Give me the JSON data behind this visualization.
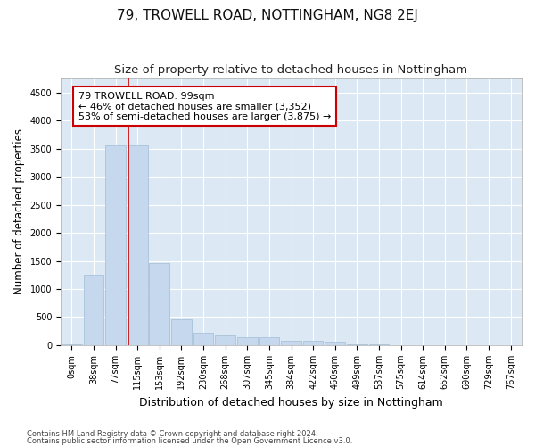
{
  "title": "79, TROWELL ROAD, NOTTINGHAM, NG8 2EJ",
  "subtitle": "Size of property relative to detached houses in Nottingham",
  "xlabel": "Distribution of detached houses by size in Nottingham",
  "ylabel": "Number of detached properties",
  "footnote1": "Contains HM Land Registry data © Crown copyright and database right 2024.",
  "footnote2": "Contains public sector information licensed under the Open Government Licence v3.0.",
  "bar_color": "#c5d8ed",
  "bar_edge_color": "#a0bdd6",
  "fig_bg_color": "#ffffff",
  "plot_bg_color": "#dce9f5",
  "ylim": [
    0,
    4750
  ],
  "yticks": [
    0,
    500,
    1000,
    1500,
    2000,
    2500,
    3000,
    3500,
    4000,
    4500
  ],
  "bin_labels": [
    "0sqm",
    "38sqm",
    "77sqm",
    "115sqm",
    "153sqm",
    "192sqm",
    "230sqm",
    "268sqm",
    "307sqm",
    "345sqm",
    "384sqm",
    "422sqm",
    "460sqm",
    "499sqm",
    "537sqm",
    "575sqm",
    "614sqm",
    "652sqm",
    "690sqm",
    "729sqm",
    "767sqm"
  ],
  "bar_heights": [
    10,
    1260,
    3560,
    3560,
    1460,
    455,
    220,
    170,
    145,
    135,
    85,
    75,
    65,
    10,
    8,
    0,
    0,
    0,
    0,
    0,
    0
  ],
  "red_line_x": 2.58,
  "annotation_title": "79 TROWELL ROAD: 99sqm",
  "annotation_line1": "← 46% of detached houses are smaller (3,352)",
  "annotation_line2": "53% of semi-detached houses are larger (3,875) →",
  "annotation_box_color": "#ffffff",
  "annotation_box_border": "#cc0000",
  "red_line_color": "#cc0000",
  "grid_color": "#ffffff",
  "title_fontsize": 11,
  "subtitle_fontsize": 9.5,
  "annotation_fontsize": 8,
  "tick_fontsize": 7,
  "ylabel_fontsize": 8.5,
  "xlabel_fontsize": 9
}
